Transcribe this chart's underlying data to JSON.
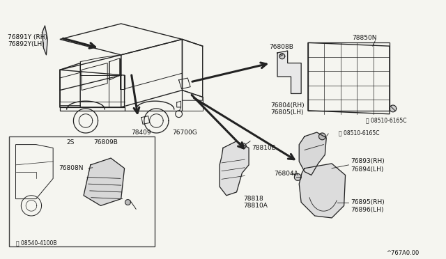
{
  "bg_color": "#f5f5f0",
  "line_color": "#222222",
  "text_color": "#111111",
  "watermark": "^767A0.00",
  "figsize": [
    6.4,
    3.72
  ],
  "dpi": 100,
  "labels": {
    "76891Y_RH": "76891Y (RH)",
    "76892Y_LH": "76892Y(LH)",
    "78409": "78409",
    "76700G": "76700G",
    "76808B": "76808B",
    "78850N": "78850N",
    "76804_RH": "76804(RH)",
    "76805_LH": "76805(LH)",
    "screw1": "Ⓢ 08510-6165C",
    "screw2": "Ⓢ 08510-6165C",
    "screw3": "Ⓢ 08540-4100B",
    "2S": "2S",
    "76809B": "76809B",
    "76808N": "76808N",
    "78810E": "78810E",
    "78818": "78818",
    "78810A": "78810A",
    "76804A": "76804A",
    "76893_RH": "76893(RH)",
    "76894_LH": "76894(LH)",
    "76895_RH": "76895(RH)",
    "76896_LH": "76896(LH)"
  }
}
